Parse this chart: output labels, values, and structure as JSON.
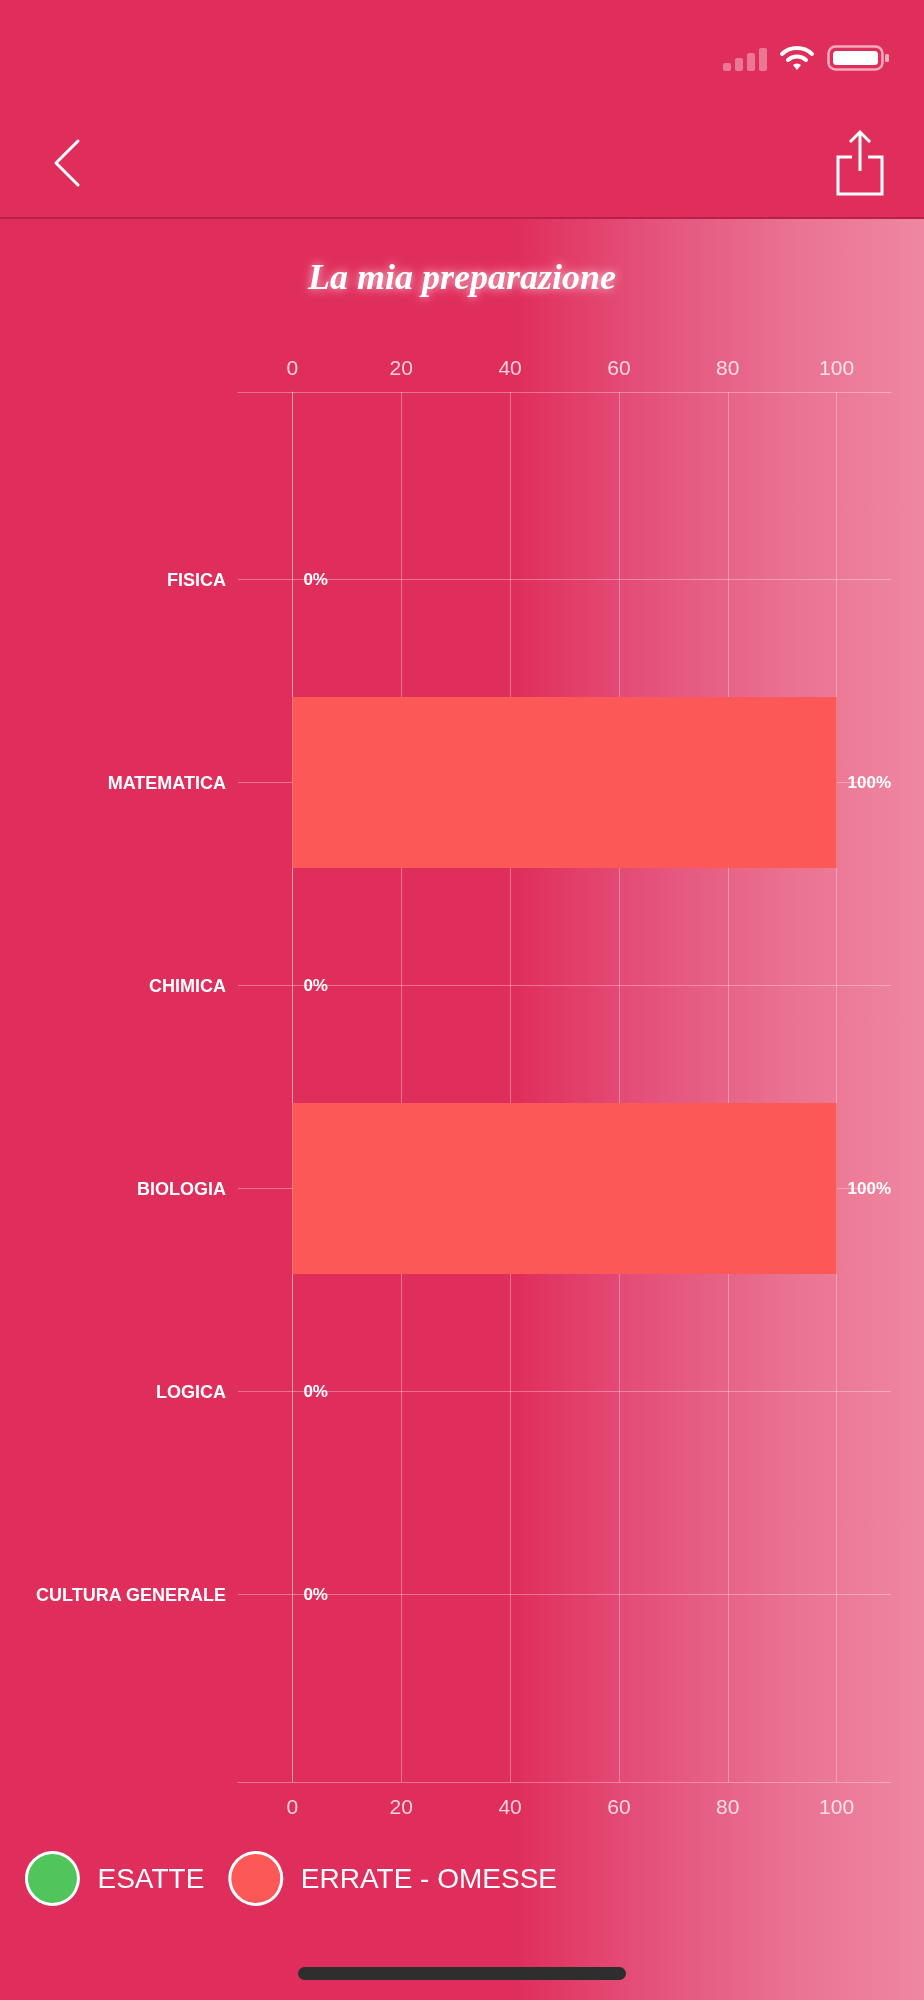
{
  "chart_data": {
    "type": "bar",
    "orientation": "horizontal",
    "stacked": true,
    "title": "La mia preparazione",
    "categories": [
      "FISICA",
      "MATEMATICA",
      "CHIMICA",
      "BIOLOGIA",
      "LOGICA",
      "CULTURA GENERALE"
    ],
    "series": [
      {
        "name": "ESATTE",
        "color": "#4fc55b",
        "values": [
          0,
          0,
          0,
          0,
          0,
          0
        ]
      },
      {
        "name": "ERRATE - OMESSE",
        "color": "#fd5858",
        "values": [
          0,
          100,
          0,
          100,
          0,
          0
        ],
        "value_labels": [
          "0%",
          "100%",
          "0%",
          "100%",
          "0%",
          "0%"
        ]
      }
    ],
    "xlim": [
      -10,
      110
    ],
    "xticks": [
      0,
      20,
      40,
      60,
      80,
      100
    ],
    "x2lim": [
      -10,
      110
    ],
    "x2ticks": [
      0,
      20,
      40,
      60,
      80,
      100
    ],
    "grid": true,
    "legend": "bottom left"
  }
}
